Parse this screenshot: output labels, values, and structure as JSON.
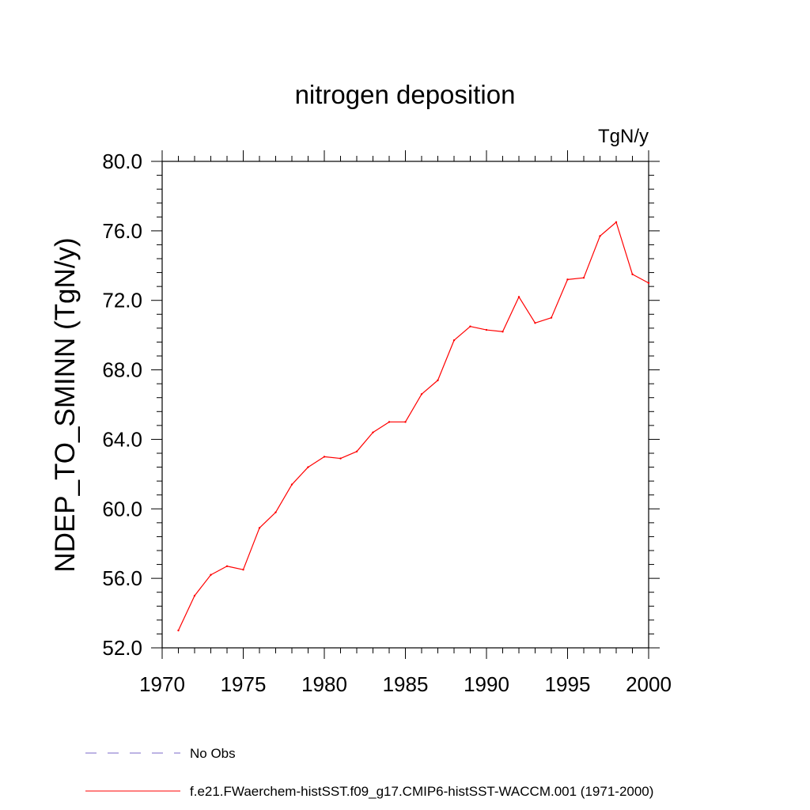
{
  "colors": {
    "series": "#ff0000",
    "obs": "#7b68c8",
    "axis": "#000000",
    "background": "#ffffff"
  },
  "chart_data": {
    "type": "line",
    "title": "nitrogen deposition",
    "units_label": "TgN/y",
    "ylabel": "NDEP_TO_SMINN  (TgN/y)",
    "xlabel": "",
    "xlim": [
      1970,
      2000
    ],
    "ylim": [
      52.0,
      80.0
    ],
    "x_ticks": [
      "1970",
      "1975",
      "1980",
      "1985",
      "1990",
      "1995",
      "2000"
    ],
    "y_ticks": [
      "52.0",
      "56.0",
      "60.0",
      "64.0",
      "68.0",
      "72.0",
      "76.0",
      "80.0"
    ],
    "grid": false,
    "legend_position": "bottom-left",
    "series": [
      {
        "name": "f.e21.FWaerchem-histSST.f09_g17.CMIP6-histSST-WACCM.001 (1971-2000)",
        "x": [
          1971,
          1972,
          1973,
          1974,
          1975,
          1976,
          1977,
          1978,
          1979,
          1980,
          1981,
          1982,
          1983,
          1984,
          1985,
          1986,
          1987,
          1988,
          1989,
          1990,
          1991,
          1992,
          1993,
          1994,
          1995,
          1996,
          1997,
          1998,
          1999,
          2000
        ],
        "values": [
          53.0,
          55.0,
          56.2,
          56.7,
          56.5,
          58.9,
          59.8,
          61.4,
          62.4,
          63.0,
          62.9,
          63.3,
          64.4,
          65.0,
          65.0,
          66.6,
          67.4,
          69.7,
          70.5,
          70.3,
          70.2,
          72.2,
          70.7,
          71.0,
          73.2,
          73.3,
          75.7,
          76.5,
          73.5,
          73.0
        ]
      }
    ],
    "legend": [
      {
        "label": "No Obs",
        "style": "dashed"
      },
      {
        "label": "f.e21.FWaerchem-histSST.f09_g17.CMIP6-histSST-WACCM.001 (1971-2000)",
        "style": "solid"
      }
    ]
  }
}
